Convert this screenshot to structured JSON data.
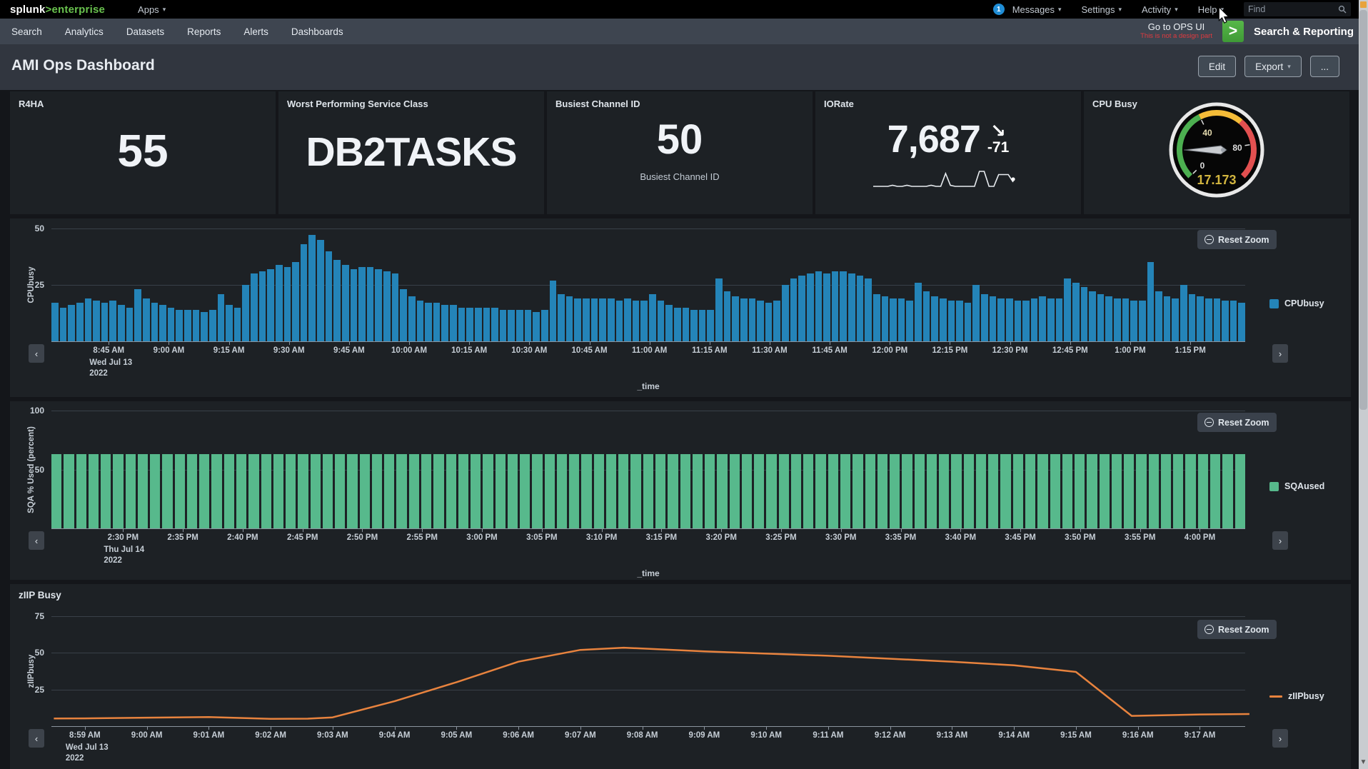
{
  "topbar": {
    "logo_bold": "splunk",
    "logo_rest": ">enterprise",
    "apps": "Apps",
    "messages_count": "1",
    "messages": "Messages",
    "settings": "Settings",
    "activity": "Activity",
    "help": "Help",
    "find_placeholder": "Find"
  },
  "appbar": {
    "items": [
      "Search",
      "Analytics",
      "Datasets",
      "Reports",
      "Alerts",
      "Dashboards"
    ],
    "ops_link": "Go to OPS UI",
    "ops_note": "This is not a design part",
    "app_name": "Search & Reporting"
  },
  "header": {
    "title": "AMI Ops Dashboard",
    "edit": "Edit",
    "export": "Export",
    "more": "..."
  },
  "kpis": {
    "r4ha": {
      "title": "R4HA",
      "value": "55"
    },
    "service_class": {
      "title": "Worst Performing Service Class",
      "value": "DB2TASKS"
    },
    "channel": {
      "title": "Busiest Channel ID",
      "value": "50",
      "sublabel": "Busiest Channel ID"
    },
    "iorate": {
      "title": "IORate",
      "value": "7,687",
      "trend_arrow": "↘",
      "delta": "-71",
      "sparkline": [
        2,
        2,
        2,
        2,
        3,
        2,
        2,
        3,
        2,
        2,
        2,
        2,
        3,
        2,
        2,
        14,
        3,
        2,
        2,
        2,
        2,
        2,
        16,
        16,
        2,
        2,
        13,
        13,
        13,
        6
      ]
    },
    "cpu": {
      "title": "CPU Busy",
      "value": "17.173",
      "tick_labels": [
        "0",
        "40",
        "80"
      ],
      "colors": {
        "low": "#4caf50",
        "mid": "#f5bc38",
        "high": "#e25050",
        "value_text": "#d2b53f",
        "needle": "#c9ccd0",
        "ring": "#e8e8e8"
      }
    }
  },
  "colors": {
    "badge_blue": "#1f8dd6",
    "app_green": "#4ea83f",
    "note_red": "#e03a3f",
    "panel": "#1d2125",
    "appbar": "#3e4550",
    "titlebar": "#31363f"
  },
  "chart_data": [
    {
      "id": "cpubusy",
      "type": "bar",
      "panel_title": "",
      "ylabel": "CPUbusy",
      "xlabel": "_time",
      "ylim": [
        0,
        50
      ],
      "yticks": [
        {
          "v": 25,
          "label": "25"
        },
        {
          "v": 50,
          "label": "50"
        }
      ],
      "xticks": [
        "8:45 AM",
        "9:00 AM",
        "9:15 AM",
        "9:30 AM",
        "9:45 AM",
        "10:00 AM",
        "10:15 AM",
        "10:30 AM",
        "10:45 AM",
        "11:00 AM",
        "11:15 AM",
        "11:30 AM",
        "11:45 AM",
        "12:00 PM",
        "12:15 PM",
        "12:30 PM",
        "12:45 PM",
        "1:00 PM",
        "1:15 PM"
      ],
      "first_tick_date": [
        "Wed Jul 13",
        "2022"
      ],
      "reset_zoom_label": "Reset Zoom",
      "grid": true,
      "legend_position": "right",
      "series": [
        {
          "name": "CPUbusy",
          "color": "#2484b8",
          "values": [
            17,
            15,
            16,
            17,
            19,
            18,
            17,
            18,
            16,
            15,
            23,
            19,
            17,
            16,
            15,
            14,
            14,
            14,
            13,
            14,
            21,
            16,
            15,
            25,
            30,
            31,
            32,
            34,
            33,
            35,
            43,
            47,
            45,
            40,
            36,
            34,
            32,
            33,
            33,
            32,
            31,
            30,
            23,
            20,
            18,
            17,
            17,
            16,
            16,
            15,
            15,
            15,
            15,
            15,
            14,
            14,
            14,
            14,
            13,
            14,
            27,
            21,
            20,
            19,
            19,
            19,
            19,
            19,
            18,
            19,
            18,
            18,
            21,
            18,
            16,
            15,
            15,
            14,
            14,
            14,
            28,
            22,
            20,
            19,
            19,
            18,
            17,
            18,
            25,
            28,
            29,
            30,
            31,
            30,
            31,
            31,
            30,
            29,
            28,
            21,
            20,
            19,
            19,
            18,
            26,
            22,
            20,
            19,
            18,
            18,
            17,
            25,
            21,
            20,
            19,
            19,
            18,
            18,
            19,
            20,
            19,
            19,
            28,
            26,
            24,
            22,
            21,
            20,
            19,
            19,
            18,
            18,
            35,
            22,
            20,
            19,
            25,
            21,
            20,
            19,
            19,
            18,
            18,
            17
          ]
        }
      ]
    },
    {
      "id": "sqa",
      "type": "bar",
      "panel_title": "",
      "ylabel": "SQA % Used (percent)",
      "xlabel": "_time",
      "ylim": [
        0,
        100
      ],
      "yticks": [
        {
          "v": 50,
          "label": "50"
        },
        {
          "v": 100,
          "label": "100"
        }
      ],
      "xticks": [
        "2:30 PM",
        "2:35 PM",
        "2:40 PM",
        "2:45 PM",
        "2:50 PM",
        "2:55 PM",
        "3:00 PM",
        "3:05 PM",
        "3:10 PM",
        "3:15 PM",
        "3:20 PM",
        "3:25 PM",
        "3:30 PM",
        "3:35 PM",
        "3:40 PM",
        "3:45 PM",
        "3:50 PM",
        "3:55 PM",
        "4:00 PM"
      ],
      "first_tick_date": [
        "Thu Jul 14",
        "2022"
      ],
      "reset_zoom_label": "Reset Zoom",
      "grid": true,
      "legend_position": "right",
      "series": [
        {
          "name": "SQAused",
          "color": "#57b98c",
          "values": [
            63,
            63,
            63,
            63,
            63,
            63,
            63,
            63,
            63,
            63,
            63,
            63,
            63,
            63,
            63,
            63,
            63,
            63,
            63,
            63,
            63,
            63,
            63,
            63,
            63,
            63,
            63,
            63,
            63,
            63,
            63,
            63,
            63,
            63,
            63,
            63,
            63,
            63,
            63,
            63,
            63,
            63,
            63,
            63,
            63,
            63,
            63,
            63,
            63,
            63,
            63,
            63,
            63,
            63,
            63,
            63,
            63,
            63,
            63,
            63,
            63,
            63,
            63,
            63,
            63,
            63,
            63,
            63,
            63,
            63,
            63,
            63,
            63,
            63,
            63,
            63,
            63,
            63,
            63,
            63,
            63,
            63,
            63,
            63,
            63,
            63,
            63,
            63,
            63,
            63,
            63,
            63,
            63,
            63,
            63,
            63,
            63
          ]
        }
      ]
    },
    {
      "id": "ziip",
      "type": "line",
      "panel_title": "zIIP Busy",
      "ylabel": "zIIPbusy",
      "xlabel": "",
      "ylim": [
        0,
        75
      ],
      "yticks": [
        {
          "v": 25,
          "label": "25"
        },
        {
          "v": 50,
          "label": "50"
        },
        {
          "v": 75,
          "label": "75"
        }
      ],
      "xticks": [
        "8:59 AM",
        "9:00 AM",
        "9:01 AM",
        "9:02 AM",
        "9:03 AM",
        "9:04 AM",
        "9:05 AM",
        "9:06 AM",
        "9:07 AM",
        "9:08 AM",
        "9:09 AM",
        "9:10 AM",
        "9:11 AM",
        "9:12 AM",
        "9:13 AM",
        "9:14 AM",
        "9:15 AM",
        "9:16 AM",
        "9:17 AM"
      ],
      "first_tick_date": [
        "Wed Jul 13",
        "2022"
      ],
      "reset_zoom_label": "Reset Zoom",
      "grid": true,
      "legend_position": "right",
      "series": [
        {
          "name": "zIIPbusy",
          "color": "#e8833e",
          "points": [
            [
              -0.5,
              5.2
            ],
            [
              0,
              5.3
            ],
            [
              1,
              5.8
            ],
            [
              2,
              6.2
            ],
            [
              3,
              5.0
            ],
            [
              3.6,
              5.1
            ],
            [
              4,
              6
            ],
            [
              5,
              17
            ],
            [
              6,
              30
            ],
            [
              7,
              44
            ],
            [
              8,
              52
            ],
            [
              8.7,
              53.5
            ],
            [
              10,
              51
            ],
            [
              12,
              48
            ],
            [
              14,
              44
            ],
            [
              15,
              41.5
            ],
            [
              16,
              37
            ],
            [
              16.9,
              7
            ],
            [
              18,
              8
            ],
            [
              18.8,
              8.3
            ]
          ]
        }
      ]
    }
  ]
}
